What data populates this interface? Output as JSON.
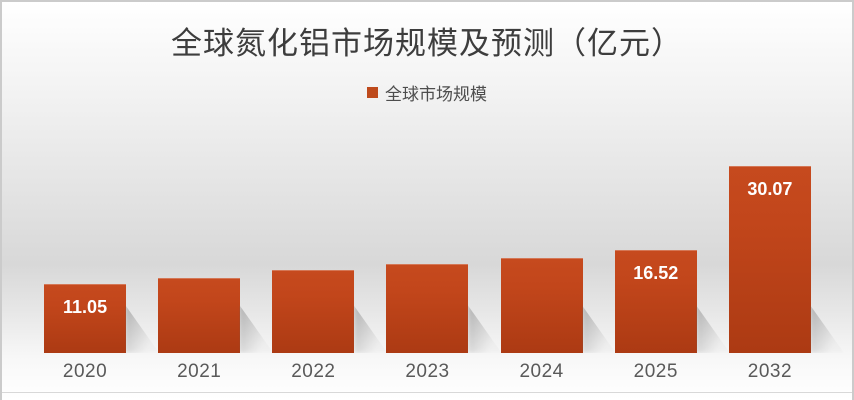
{
  "chart_data": {
    "type": "bar",
    "title": "全球氮化铝市场规模及预测（亿元）",
    "legend": [
      "全球市场规模"
    ],
    "legend_position": "top-center",
    "categories": [
      "2020",
      "2021",
      "2022",
      "2023",
      "2024",
      "2025",
      "2032"
    ],
    "values": [
      11.05,
      12.1,
      13.3,
      14.3,
      15.3,
      16.52,
      30.07
    ],
    "data_labels": [
      "11.05",
      null,
      null,
      null,
      null,
      "16.52",
      "30.07"
    ],
    "xlabel": "",
    "ylabel": "",
    "ylim": [
      0,
      30.07
    ],
    "grid": false,
    "y_axis_shown": false
  },
  "colors": {
    "bar_top": "#c64a1e",
    "bar_bottom": "#ac3a13",
    "legend_swatch": "#be4a1c",
    "title_text": "#3d3d3d",
    "axis_text": "#595959",
    "data_label_text": "#ffffff",
    "border": "#cbcbcb"
  }
}
